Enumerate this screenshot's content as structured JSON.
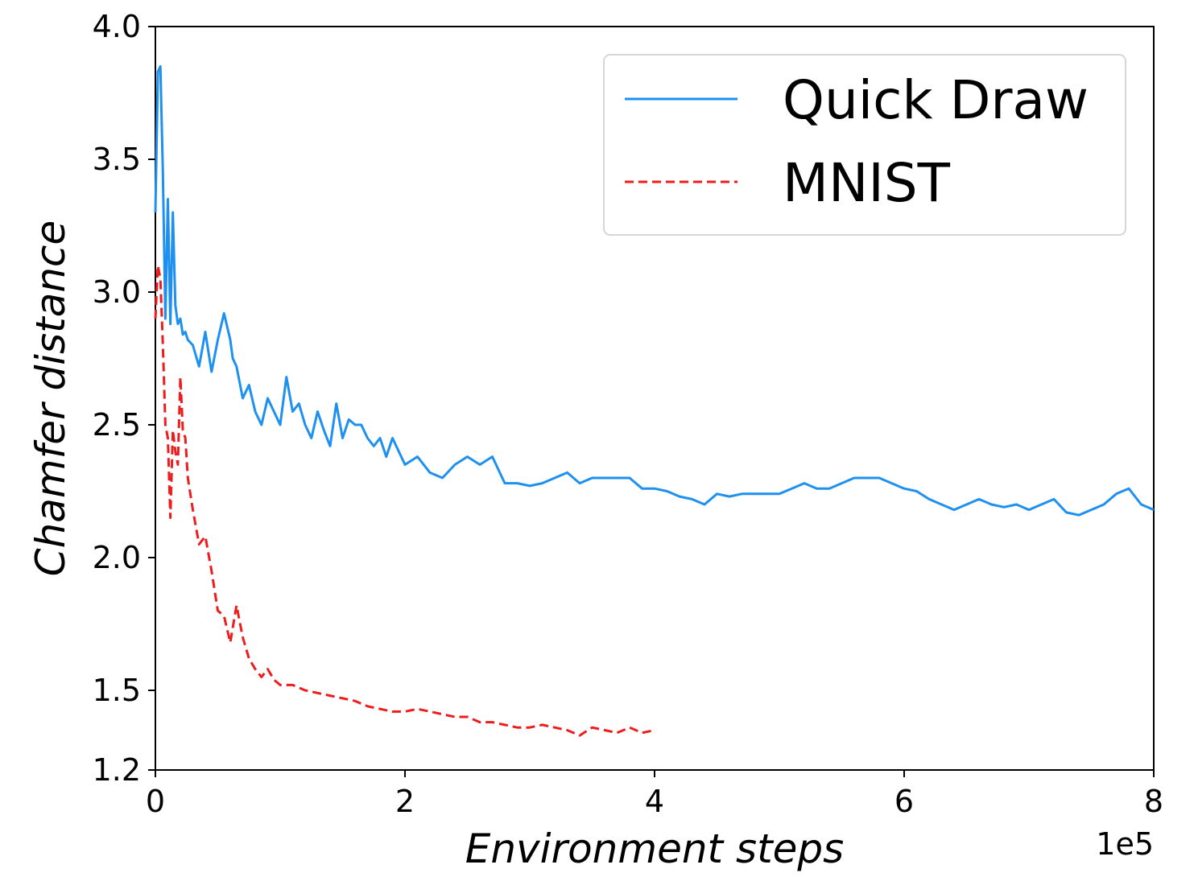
{
  "chart_data": {
    "type": "line",
    "xlabel": "Environment steps",
    "ylabel": "Chamfer distance",
    "x_offset_label": "1e5",
    "xlim": [
      0,
      8
    ],
    "ylim": [
      1.2,
      4.0
    ],
    "x_ticks": [
      0,
      2,
      4,
      6,
      8
    ],
    "x_tick_labels": [
      "0",
      "2",
      "4",
      "6",
      "8"
    ],
    "y_ticks": [
      1.2,
      1.5,
      2.0,
      2.5,
      3.0,
      3.5,
      4.0
    ],
    "y_tick_labels": [
      "1.2",
      "1.5",
      "2.0",
      "2.5",
      "3.0",
      "3.5",
      "4.0"
    ],
    "grid": false,
    "legend_position": "top-right",
    "series": [
      {
        "name": "Quick Draw",
        "color": "#1E90F0",
        "line_style": "solid",
        "x": [
          0.0,
          0.02,
          0.04,
          0.06,
          0.08,
          0.1,
          0.12,
          0.14,
          0.16,
          0.18,
          0.2,
          0.22,
          0.24,
          0.26,
          0.3,
          0.35,
          0.4,
          0.45,
          0.5,
          0.55,
          0.6,
          0.62,
          0.65,
          0.7,
          0.75,
          0.8,
          0.85,
          0.9,
          0.95,
          1.0,
          1.05,
          1.1,
          1.15,
          1.2,
          1.25,
          1.3,
          1.35,
          1.4,
          1.45,
          1.5,
          1.55,
          1.6,
          1.65,
          1.7,
          1.75,
          1.8,
          1.85,
          1.9,
          1.95,
          2.0,
          2.1,
          2.2,
          2.3,
          2.4,
          2.5,
          2.6,
          2.7,
          2.8,
          2.9,
          3.0,
          3.1,
          3.2,
          3.3,
          3.4,
          3.5,
          3.6,
          3.7,
          3.8,
          3.9,
          4.0,
          4.1,
          4.2,
          4.3,
          4.4,
          4.5,
          4.6,
          4.7,
          4.8,
          4.9,
          5.0,
          5.1,
          5.2,
          5.3,
          5.4,
          5.5,
          5.6,
          5.7,
          5.8,
          5.9,
          6.0,
          6.1,
          6.2,
          6.3,
          6.4,
          6.5,
          6.6,
          6.7,
          6.8,
          6.9,
          7.0,
          7.1,
          7.2,
          7.3,
          7.4,
          7.5,
          7.6,
          7.7,
          7.8,
          7.9,
          8.0
        ],
        "y": [
          3.3,
          3.83,
          3.85,
          3.45,
          2.9,
          3.35,
          2.88,
          3.3,
          2.95,
          2.88,
          2.9,
          2.84,
          2.85,
          2.82,
          2.8,
          2.72,
          2.85,
          2.7,
          2.82,
          2.92,
          2.82,
          2.75,
          2.72,
          2.6,
          2.65,
          2.55,
          2.5,
          2.6,
          2.55,
          2.5,
          2.68,
          2.55,
          2.58,
          2.5,
          2.45,
          2.55,
          2.48,
          2.42,
          2.58,
          2.45,
          2.52,
          2.5,
          2.5,
          2.45,
          2.42,
          2.45,
          2.38,
          2.45,
          2.4,
          2.35,
          2.38,
          2.32,
          2.3,
          2.35,
          2.38,
          2.35,
          2.38,
          2.28,
          2.28,
          2.27,
          2.28,
          2.3,
          2.32,
          2.28,
          2.3,
          2.3,
          2.3,
          2.3,
          2.26,
          2.26,
          2.25,
          2.23,
          2.22,
          2.2,
          2.24,
          2.23,
          2.24,
          2.24,
          2.24,
          2.24,
          2.26,
          2.28,
          2.26,
          2.26,
          2.28,
          2.3,
          2.3,
          2.3,
          2.28,
          2.26,
          2.25,
          2.22,
          2.2,
          2.18,
          2.2,
          2.22,
          2.2,
          2.19,
          2.2,
          2.18,
          2.2,
          2.22,
          2.17,
          2.16,
          2.18,
          2.2,
          2.24,
          2.26,
          2.2,
          2.18
        ]
      },
      {
        "name": "MNIST",
        "color": "#EE1C1C",
        "line_style": "dashed",
        "x": [
          0.0,
          0.02,
          0.04,
          0.06,
          0.08,
          0.1,
          0.12,
          0.14,
          0.16,
          0.18,
          0.2,
          0.22,
          0.24,
          0.26,
          0.3,
          0.35,
          0.4,
          0.45,
          0.5,
          0.55,
          0.6,
          0.65,
          0.7,
          0.75,
          0.8,
          0.85,
          0.9,
          0.95,
          1.0,
          1.1,
          1.2,
          1.3,
          1.4,
          1.5,
          1.6,
          1.7,
          1.8,
          1.9,
          2.0,
          2.1,
          2.2,
          2.3,
          2.4,
          2.5,
          2.6,
          2.7,
          2.8,
          2.9,
          3.0,
          3.1,
          3.2,
          3.3,
          3.4,
          3.5,
          3.6,
          3.7,
          3.8,
          3.9,
          4.0
        ],
        "y": [
          2.9,
          3.1,
          3.05,
          2.8,
          2.5,
          2.45,
          2.15,
          2.48,
          2.4,
          2.35,
          2.68,
          2.48,
          2.45,
          2.3,
          2.18,
          2.05,
          2.08,
          1.95,
          1.8,
          1.78,
          1.68,
          1.82,
          1.7,
          1.62,
          1.58,
          1.55,
          1.58,
          1.54,
          1.52,
          1.52,
          1.5,
          1.49,
          1.48,
          1.47,
          1.46,
          1.44,
          1.43,
          1.42,
          1.42,
          1.43,
          1.42,
          1.41,
          1.4,
          1.4,
          1.38,
          1.38,
          1.37,
          1.36,
          1.36,
          1.37,
          1.36,
          1.35,
          1.33,
          1.36,
          1.35,
          1.34,
          1.36,
          1.34,
          1.35
        ]
      }
    ]
  }
}
